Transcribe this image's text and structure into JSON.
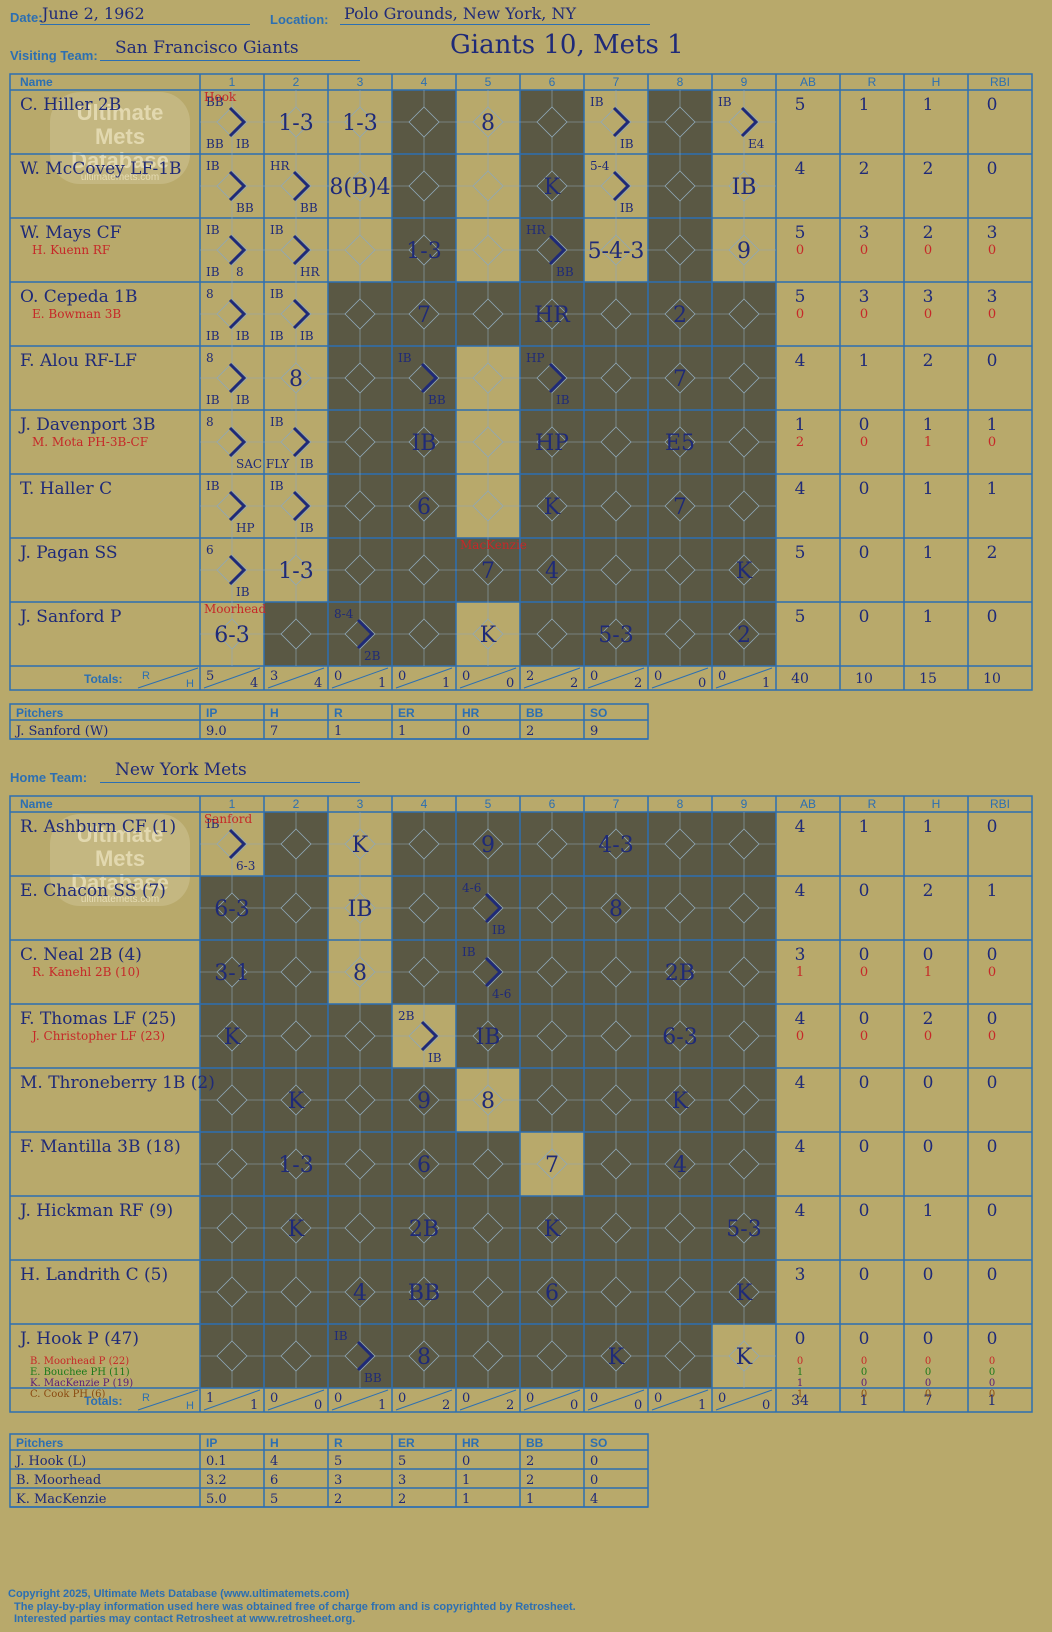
{
  "header": {
    "date_label": "Date:",
    "date": "June 2, 1962",
    "location_label": "Location:",
    "location": "Polo Grounds, New York, NY",
    "result": "Giants 10, Mets 1",
    "visiting_label": "Visiting Team:",
    "visiting_team": "San Francisco Giants",
    "home_label": "Home Team:",
    "home_team": "New York Mets"
  },
  "columns": {
    "name": "Name",
    "innings": [
      "1",
      "2",
      "3",
      "4",
      "5",
      "6",
      "7",
      "8",
      "9"
    ],
    "stats": [
      "AB",
      "R",
      "H",
      "RBI"
    ],
    "totals": "Totals:",
    "r": "R",
    "h": "H"
  },
  "watermark": {
    "line1": "Ultimate",
    "line2": "Mets",
    "line3": "Database",
    "url": "ultimatemets.com"
  },
  "colors": {
    "paper": "#b8a96b",
    "grid": "#2c6fb2",
    "ink": "#1f2a78",
    "red": "#c62828",
    "shade": "#5a5844",
    "green": "#1a7a1a"
  },
  "visitors": {
    "rows": [
      {
        "name": "C. Hiller 2B",
        "sub": "",
        "stats": [
          "5",
          "1",
          "1",
          "0"
        ],
        "sub_stats": [],
        "cells": [
          "BB|IB|BB",
          "1-3",
          "1-3",
          "",
          "8",
          "",
          "IB|IB",
          "",
          "IB|E4"
        ]
      },
      {
        "name": "W. McCovey LF-1B",
        "sub": "",
        "stats": [
          "4",
          "2",
          "2",
          "0"
        ],
        "sub_stats": [],
        "cells": [
          "IB|BB",
          "HR|BB",
          "8(B)4",
          "",
          "",
          "K",
          "5-4|IB",
          "",
          "IB"
        ]
      },
      {
        "name": "W. Mays CF",
        "sub": "H. Kuenn RF",
        "stats": [
          "5",
          "3",
          "2",
          "3"
        ],
        "sub_stats": [
          "0",
          "0",
          "0",
          "0"
        ],
        "cells": [
          "IB|8|IB",
          "IB|HR",
          "",
          "1-3",
          "",
          "HR|BB",
          "5-4-3",
          "",
          "9"
        ]
      },
      {
        "name": "O. Cepeda 1B",
        "sub": "E. Bowman 3B",
        "stats": [
          "5",
          "3",
          "3",
          "3"
        ],
        "sub_stats": [
          "0",
          "0",
          "0",
          "0"
        ],
        "cells": [
          "8|IB|IB",
          "IB|IB|IB",
          "",
          "7",
          "",
          "HR",
          "",
          "2",
          ""
        ]
      },
      {
        "name": "F. Alou RF-LF",
        "sub": "",
        "stats": [
          "4",
          "1",
          "2",
          "0"
        ],
        "sub_stats": [],
        "cells": [
          "8|IB|IB",
          "8",
          "",
          "IB|BB",
          "",
          "HP|IB",
          "",
          "7",
          ""
        ]
      },
      {
        "name": "J. Davenport 3B",
        "sub": "M. Mota PH-3B-CF",
        "stats": [
          "1",
          "0",
          "1",
          "1"
        ],
        "sub_stats": [
          "2",
          "0",
          "1",
          "0"
        ],
        "cells": [
          "8|SAC FLY",
          "IB|IB",
          "",
          "IB",
          "",
          "HP",
          "",
          "E5",
          ""
        ]
      },
      {
        "name": "T. Haller C",
        "sub": "",
        "stats": [
          "4",
          "0",
          "1",
          "1"
        ],
        "sub_stats": [],
        "cells": [
          "IB|HP",
          "IB|IB",
          "",
          "6",
          "",
          "K",
          "",
          "7",
          ""
        ]
      },
      {
        "name": "J. Pagan SS",
        "sub": "",
        "stats": [
          "5",
          "0",
          "1",
          "2"
        ],
        "sub_stats": [],
        "cells": [
          "6|IB",
          "1-3",
          "",
          "",
          "7",
          "4",
          "",
          "",
          "K"
        ]
      },
      {
        "name": "J. Sanford P",
        "sub": "",
        "stats": [
          "5",
          "0",
          "1",
          "0"
        ],
        "sub_stats": [],
        "cells": [
          "6-3",
          "",
          "8-4|2B",
          "",
          "K",
          "",
          "5-3",
          "",
          "2"
        ]
      }
    ],
    "pitcher_notes": [
      {
        "text": "Hook",
        "row": 0,
        "inning": 0
      },
      {
        "text": "MacKenzie",
        "row": 7,
        "inning": 4
      },
      {
        "text": "Moorhead",
        "row": 8,
        "inning": 0
      }
    ],
    "totals": [
      [
        "5",
        "4"
      ],
      [
        "3",
        "4"
      ],
      [
        "0",
        "1"
      ],
      [
        "0",
        "1"
      ],
      [
        "0",
        "0"
      ],
      [
        "2",
        "2"
      ],
      [
        "0",
        "2"
      ],
      [
        "0",
        "0"
      ],
      [
        "0",
        "1"
      ]
    ],
    "total_stats": [
      "40",
      "10",
      "15",
      "10"
    ]
  },
  "visitor_pitchers": {
    "headers": [
      "Pitchers",
      "IP",
      "H",
      "R",
      "ER",
      "HR",
      "BB",
      "SO"
    ],
    "rows": [
      [
        "J. Sanford (W)",
        "9.0",
        "7",
        "1",
        "1",
        "0",
        "2",
        "9"
      ]
    ]
  },
  "home": {
    "rows": [
      {
        "name": "R. Ashburn CF (1)",
        "sub": "",
        "stats": [
          "4",
          "1",
          "1",
          "0"
        ],
        "sub_stats": [],
        "cells": [
          "IB|6-3",
          "",
          "K",
          "",
          "9",
          "",
          "4-3",
          "",
          ""
        ]
      },
      {
        "name": "E. Chacon SS (7)",
        "sub": "",
        "stats": [
          "4",
          "0",
          "2",
          "1"
        ],
        "sub_stats": [],
        "cells": [
          "6-3",
          "",
          "IB",
          "",
          "4-6|IB",
          "",
          "8",
          "",
          ""
        ]
      },
      {
        "name": "C. Neal 2B (4)",
        "sub": "R. Kanehl 2B (10)",
        "stats": [
          "3",
          "0",
          "0",
          "0"
        ],
        "sub_stats": [
          "1",
          "0",
          "1",
          "0"
        ],
        "cells": [
          "3-1",
          "",
          "8",
          "",
          "IB|4-6",
          "",
          "",
          "2B",
          ""
        ]
      },
      {
        "name": "F. Thomas LF (25)",
        "sub": "J. Christopher LF (23)",
        "stats": [
          "4",
          "0",
          "2",
          "0"
        ],
        "sub_stats": [
          "0",
          "0",
          "0",
          "0"
        ],
        "cells": [
          "K",
          "",
          "",
          "2B|IB",
          "IB",
          "",
          "",
          "6-3",
          ""
        ]
      },
      {
        "name": "M. Throneberry 1B (2)",
        "sub": "",
        "stats": [
          "4",
          "0",
          "0",
          "0"
        ],
        "sub_stats": [],
        "cells": [
          "",
          "K",
          "",
          "9",
          "8",
          "",
          "",
          "K",
          ""
        ]
      },
      {
        "name": "F. Mantilla 3B (18)",
        "sub": "",
        "stats": [
          "4",
          "0",
          "0",
          "0"
        ],
        "sub_stats": [],
        "cells": [
          "",
          "1-3",
          "",
          "6",
          "",
          "7",
          "",
          "4",
          ""
        ]
      },
      {
        "name": "J. Hickman RF (9)",
        "sub": "",
        "stats": [
          "4",
          "0",
          "1",
          "0"
        ],
        "sub_stats": [],
        "cells": [
          "",
          "K",
          "",
          "2B",
          "",
          "K",
          "",
          "",
          "5-3"
        ]
      },
      {
        "name": "H. Landrith C (5)",
        "sub": "",
        "stats": [
          "3",
          "0",
          "0",
          "0"
        ],
        "sub_stats": [],
        "cells": [
          "",
          "",
          "4",
          "BB",
          "",
          "6",
          "",
          "",
          "K"
        ]
      },
      {
        "name": "J. Hook P (47)",
        "sub": "",
        "stats": [
          "0",
          "0",
          "0",
          "0"
        ],
        "sub_stats": [],
        "cells": [
          "",
          "",
          "IB|BB",
          "8",
          "",
          "",
          "K",
          "",
          "K"
        ]
      }
    ],
    "hook_subs": [
      {
        "text": "B. Moorhead P (22)",
        "color": "#c62828",
        "stats": [
          "0",
          "0",
          "0",
          "0"
        ]
      },
      {
        "text": "E. Bouchee PH (11)",
        "color": "#1a7a1a",
        "stats": [
          "1",
          "0",
          "0",
          "0"
        ]
      },
      {
        "text": "K. MacKenzie P (19)",
        "color": "#5a1a7a",
        "stats": [
          "1",
          "0",
          "0",
          "0"
        ]
      },
      {
        "text": "C. Cook PH (6)",
        "color": "#8a4a10",
        "stats": [
          "1",
          "0",
          "0",
          "0"
        ]
      }
    ],
    "pitcher_notes": [
      {
        "text": "Sanford",
        "row": 0,
        "inning": 0
      }
    ],
    "totals": [
      [
        "1",
        "1"
      ],
      [
        "0",
        "0"
      ],
      [
        "0",
        "1"
      ],
      [
        "0",
        "2"
      ],
      [
        "0",
        "2"
      ],
      [
        "0",
        "0"
      ],
      [
        "0",
        "0"
      ],
      [
        "0",
        "1"
      ],
      [
        "0",
        "0"
      ]
    ],
    "total_stats": [
      "34",
      "1",
      "7",
      "1"
    ]
  },
  "home_pitchers": {
    "headers": [
      "Pitchers",
      "IP",
      "H",
      "R",
      "ER",
      "HR",
      "BB",
      "SO"
    ],
    "rows": [
      [
        "J. Hook (L)",
        "0.1",
        "4",
        "5",
        "5",
        "0",
        "2",
        "0"
      ],
      [
        "B. Moorhead",
        "3.2",
        "6",
        "3",
        "3",
        "1",
        "2",
        "0"
      ],
      [
        "K. MacKenzie",
        "5.0",
        "5",
        "2",
        "2",
        "1",
        "1",
        "4"
      ]
    ]
  },
  "footer": {
    "line1": "Copyright 2025, Ultimate Mets Database (www.ultimatemets.com)",
    "line2": "The play-by-play information used here was obtained free of charge from and is copyrighted by Retrosheet.",
    "line3": "Interested parties may contact Retrosheet at www.retrosheet.org."
  }
}
